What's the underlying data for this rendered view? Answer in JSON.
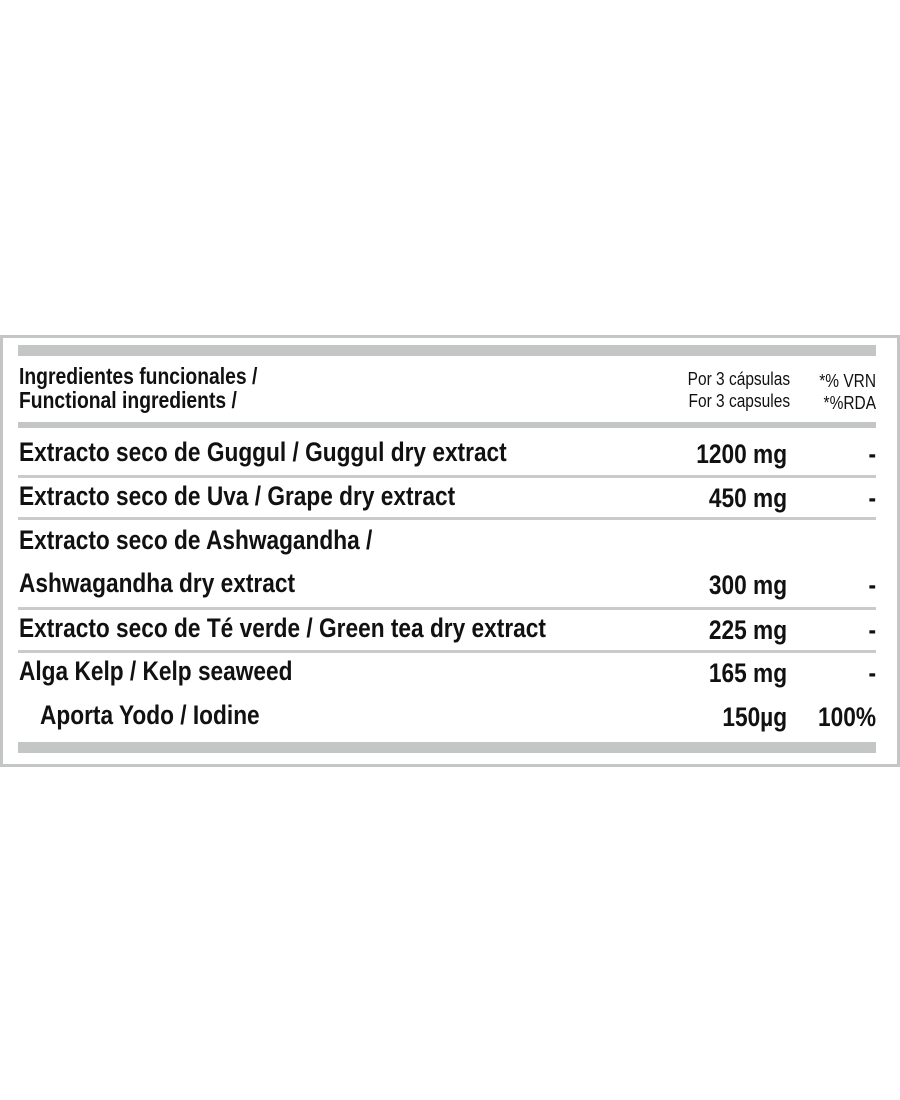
{
  "header": {
    "title_es": "Ingredientes funcionales /",
    "title_en": "Functional ingredients /",
    "serving_es": "Por 3 cápsulas",
    "serving_en": "For 3 capsules",
    "ref_es": "*% VRN",
    "ref_en": "*%RDA"
  },
  "rows": [
    {
      "name": "Extracto seco de Guggul / Guggul dry extract",
      "amount": "1200 mg",
      "pct": "-"
    },
    {
      "name": "Extracto seco de Uva / Grape dry extract",
      "amount": "450 mg",
      "pct": "-"
    },
    {
      "name": "Extracto seco de Ashwagandha /",
      "name2": "Ashwagandha dry extract",
      "amount": "300 mg",
      "pct": "-"
    },
    {
      "name": "Extracto seco de Té verde / Green tea dry extract",
      "amount": "225 mg",
      "pct": "-"
    },
    {
      "name": "Alga Kelp / Kelp seaweed",
      "amount": "165 mg",
      "pct": "-"
    },
    {
      "name": "Aporta Yodo / Iodine",
      "amount": "150µg",
      "pct": "100%"
    }
  ],
  "colors": {
    "border": "#c4c6c6",
    "text": "#111111"
  }
}
